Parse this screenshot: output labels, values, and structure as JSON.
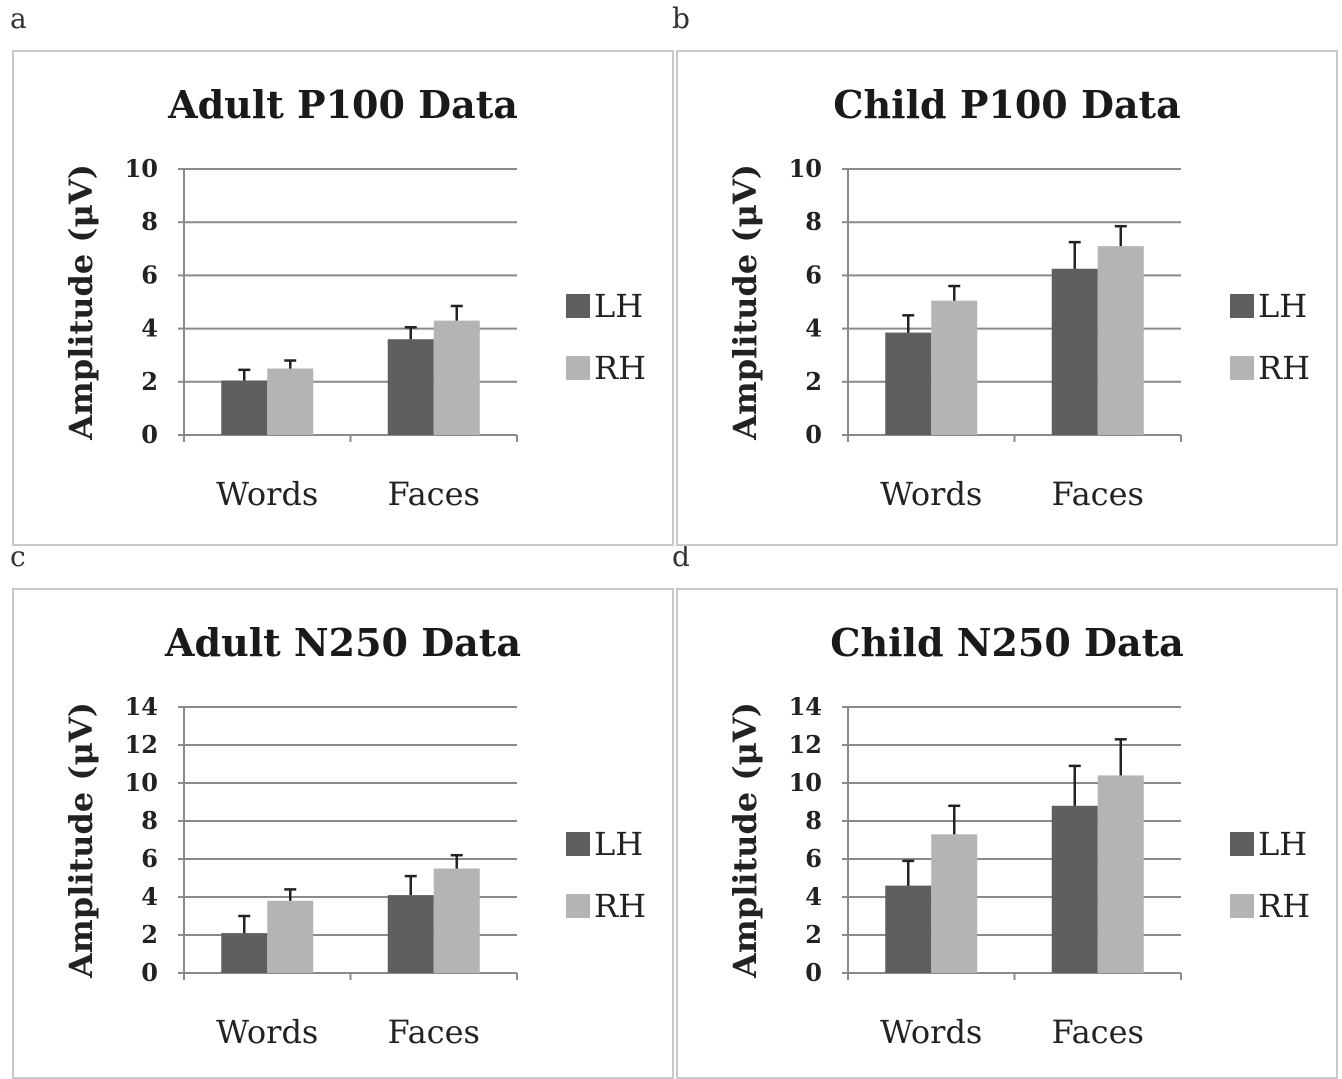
{
  "panels": [
    {
      "letter": "a",
      "chart_data": {
        "type": "bar",
        "title": "Adult P100 Data",
        "xlabel": "",
        "ylabel": "Amplitude (μV)",
        "categories": [
          "Words",
          "Faces"
        ],
        "ylim": [
          0,
          10
        ],
        "yticks": [
          "0",
          "2",
          "4",
          "6",
          "8",
          "10"
        ],
        "grid": true,
        "legend_position": "right",
        "series": [
          {
            "name": "LH",
            "color": "#5f5f5f",
            "values": [
              2.05,
              3.6
            ],
            "errors": [
              0.4,
              0.45
            ]
          },
          {
            "name": "RH",
            "color": "#b4b4b4",
            "values": [
              2.5,
              4.3
            ],
            "errors": [
              0.3,
              0.55
            ]
          }
        ]
      }
    },
    {
      "letter": "b",
      "chart_data": {
        "type": "bar",
        "title": "Child P100 Data",
        "xlabel": "",
        "ylabel": "Amplitude (μV)",
        "categories": [
          "Words",
          "Faces"
        ],
        "ylim": [
          0,
          10
        ],
        "yticks": [
          "0",
          "2",
          "4",
          "6",
          "8",
          "10"
        ],
        "grid": true,
        "legend_position": "right",
        "series": [
          {
            "name": "LH",
            "color": "#5f5f5f",
            "values": [
              3.85,
              6.25
            ],
            "errors": [
              0.65,
              1.0
            ]
          },
          {
            "name": "RH",
            "color": "#b4b4b4",
            "values": [
              5.05,
              7.1
            ],
            "errors": [
              0.55,
              0.75
            ]
          }
        ]
      }
    },
    {
      "letter": "c",
      "chart_data": {
        "type": "bar",
        "title": "Adult N250 Data",
        "xlabel": "",
        "ylabel": "Amplitude (μV)",
        "categories": [
          "Words",
          "Faces"
        ],
        "ylim": [
          0,
          14
        ],
        "yticks": [
          "0",
          "2",
          "4",
          "6",
          "8",
          "10",
          "12",
          "14"
        ],
        "grid": true,
        "legend_position": "right",
        "series": [
          {
            "name": "LH",
            "color": "#5f5f5f",
            "values": [
              2.1,
              4.1
            ],
            "errors": [
              0.9,
              1.0
            ]
          },
          {
            "name": "RH",
            "color": "#b4b4b4",
            "values": [
              3.8,
              5.5
            ],
            "errors": [
              0.6,
              0.7
            ]
          }
        ]
      }
    },
    {
      "letter": "d",
      "chart_data": {
        "type": "bar",
        "title": "Child N250 Data",
        "xlabel": "",
        "ylabel": "Amplitude (μV)",
        "categories": [
          "Words",
          "Faces"
        ],
        "ylim": [
          0,
          14
        ],
        "yticks": [
          "0",
          "2",
          "4",
          "6",
          "8",
          "10",
          "12",
          "14"
        ],
        "grid": true,
        "legend_position": "right",
        "series": [
          {
            "name": "LH",
            "color": "#5f5f5f",
            "values": [
              4.6,
              8.8
            ],
            "errors": [
              1.3,
              2.1
            ]
          },
          {
            "name": "RH",
            "color": "#b4b4b4",
            "values": [
              7.3,
              10.4
            ],
            "errors": [
              1.5,
              1.9
            ]
          }
        ]
      }
    }
  ]
}
